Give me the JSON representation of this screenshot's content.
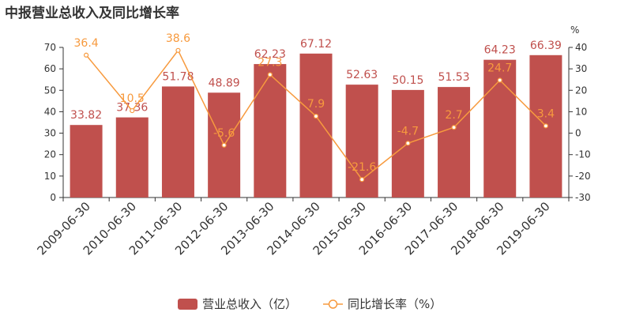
{
  "title": "中报营业总收入及同比增长率",
  "colors": {
    "bar": "#c0504d",
    "line": "#f79a3e",
    "axis": "#333333"
  },
  "chart_data": {
    "type": "bar",
    "title": "中报营业总收入及同比增长率",
    "categories": [
      "2009-06-30",
      "2010-06-30",
      "2011-06-30",
      "2012-06-30",
      "2013-06-30",
      "2014-06-30",
      "2015-06-30",
      "2016-06-30",
      "2017-06-30",
      "2018-06-30",
      "2019-06-30"
    ],
    "series": [
      {
        "name": "营业总收入（亿）",
        "type": "bar",
        "axis": "left",
        "values": [
          33.82,
          37.36,
          51.78,
          48.89,
          62.23,
          67.12,
          52.63,
          50.15,
          51.53,
          64.23,
          66.39
        ]
      },
      {
        "name": "同比增长率（%）",
        "type": "line",
        "axis": "right",
        "values": [
          36.4,
          10.5,
          38.6,
          -5.6,
          27.3,
          7.9,
          -21.6,
          -4.7,
          2.7,
          24.7,
          3.4
        ]
      }
    ],
    "y_left": {
      "lim": [
        0,
        70
      ],
      "ticks": [
        0,
        10,
        20,
        30,
        40,
        50,
        60,
        70
      ]
    },
    "y_right": {
      "lim": [
        -30,
        40
      ],
      "ticks": [
        -30,
        -20,
        -10,
        0,
        10,
        20,
        30,
        40
      ],
      "unit": "%"
    },
    "legend": {
      "position": "bottom-center",
      "items": [
        "营业总收入（亿）",
        "同比增长率（%）"
      ]
    }
  }
}
